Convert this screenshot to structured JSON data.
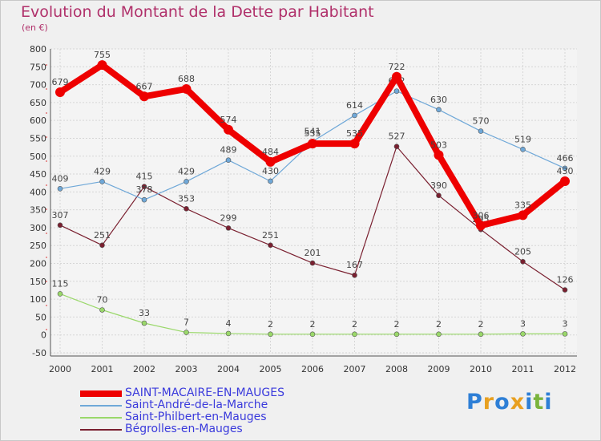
{
  "title": "Evolution du Montant de la Dette par Habitant",
  "subtitle": "(en €)",
  "logo": {
    "text": "Proxiti",
    "letters": [
      "P",
      "r",
      "o",
      "x",
      "i",
      "t",
      "i"
    ],
    "colors": [
      "#2e7fd6",
      "#e8a020",
      "#2e7fd6",
      "#e8a020",
      "#2e7fd6",
      "#7ab33c",
      "#2e7fd6"
    ]
  },
  "chart_data": {
    "type": "line",
    "x": [
      "2000",
      "2001",
      "2002",
      "2003",
      "2004",
      "2005",
      "2006",
      "2007",
      "2008",
      "2009",
      "2010",
      "2011",
      "2012"
    ],
    "ylim": [
      -50,
      800
    ],
    "yticks": [
      -50,
      0,
      50,
      100,
      150,
      200,
      250,
      300,
      350,
      400,
      450,
      500,
      550,
      600,
      650,
      700,
      750,
      800
    ],
    "grid": true,
    "legend_position": "bottom-left",
    "series": [
      {
        "name": "Bégrolles-en-Mauges",
        "color": "#7a2030",
        "width": 1.2,
        "values": [
          307,
          251,
          415,
          353,
          299,
          251,
          201,
          167,
          527,
          390,
          295,
          205,
          126
        ],
        "labels": [
          "307",
          "251",
          "415",
          "353",
          "299",
          "251",
          "201",
          "167",
          "527",
          "390",
          "295",
          "205",
          "126"
        ]
      },
      {
        "name": "Saint-Philbert-en-Mauges",
        "color": "#9ad86a",
        "width": 1.2,
        "values": [
          115,
          70,
          33,
          7,
          4,
          2,
          2,
          2,
          2,
          2,
          2,
          3,
          3
        ],
        "labels": [
          "115",
          "70",
          "33",
          "7",
          "4",
          "2",
          "2",
          "2",
          "2",
          "2",
          "2",
          "3",
          "3"
        ]
      },
      {
        "name": "Saint-André-de-la-Marche",
        "color": "#6fa8d8",
        "width": 1.2,
        "values": [
          409,
          429,
          378,
          429,
          489,
          430,
          541,
          614,
          682,
          630,
          570,
          519,
          466
        ],
        "labels": [
          "409",
          "429",
          "378",
          "429",
          "489",
          "430",
          "541",
          "614",
          "682",
          "630",
          "570",
          "519",
          "466"
        ]
      },
      {
        "name": "SAINT-MACAIRE-EN-MAUGES",
        "color": "#ee0000",
        "width": 8,
        "values": [
          679,
          755,
          667,
          688,
          574,
          484,
          535,
          535,
          722,
          503,
          306,
          335,
          430
        ],
        "labels": [
          "679",
          "755",
          "667",
          "688",
          "574",
          "484",
          "535",
          "535",
          "722",
          "503",
          "306",
          "335",
          "430"
        ]
      }
    ],
    "legend": [
      {
        "name": "SAINT-MACAIRE-EN-MAUGES",
        "color": "#ee0000",
        "width": 8
      },
      {
        "name": "Saint-André-de-la-Marche",
        "color": "#6fa8d8",
        "width": 2
      },
      {
        "name": "Saint-Philbert-en-Mauges",
        "color": "#9ad86a",
        "width": 2
      },
      {
        "name": "Bégrolles-en-Mauges",
        "color": "#7a2030",
        "width": 2
      }
    ]
  }
}
